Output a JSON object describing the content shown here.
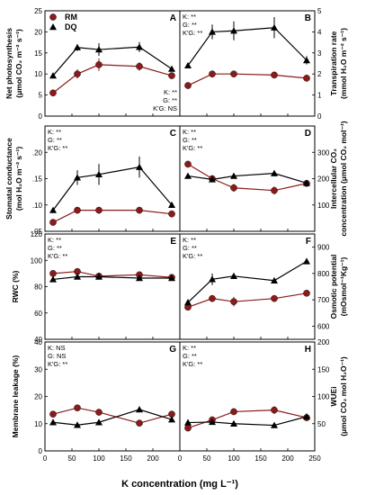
{
  "figure": {
    "xlabel": "K concentration (mg L⁻¹)",
    "legend": [
      {
        "name": "RM",
        "marker": "circle",
        "color": "#8b1a1a"
      },
      {
        "name": "DQ",
        "marker": "triangle",
        "color": "#000000"
      }
    ]
  },
  "chart_data": [
    {
      "type": "line",
      "panel": "A",
      "ylabel_lines": [
        "Net photosynthesis",
        "(μmol CO₂ m⁻² s⁻¹)"
      ],
      "ylabel_side": "left",
      "x": [
        15,
        60,
        100,
        175,
        235
      ],
      "xlim": [
        0,
        250
      ],
      "ylim": [
        0,
        25
      ],
      "yticks": [
        0,
        5,
        10,
        15,
        20,
        25
      ],
      "show_yticks": true,
      "stats": [
        "K: **",
        "G: **",
        "K'G: NS"
      ],
      "stats_position": "bottom-right",
      "series": [
        {
          "name": "RM",
          "values": [
            5.5,
            10.0,
            12.2,
            11.8,
            9.6
          ],
          "err": [
            0.4,
            1.1,
            1.5,
            1.0,
            0.4
          ]
        },
        {
          "name": "DQ",
          "values": [
            9.6,
            16.3,
            15.8,
            16.4,
            11.2
          ],
          "err": [
            0.5,
            0.8,
            1.5,
            1.2,
            0.5
          ]
        }
      ]
    },
    {
      "type": "line",
      "panel": "B",
      "ylabel_lines": [
        "Transpiration rate",
        "(mmol H₂O m⁻² s⁻¹)"
      ],
      "ylabel_side": "right",
      "x": [
        15,
        60,
        100,
        175,
        235
      ],
      "xlim": [
        0,
        250
      ],
      "ylim": [
        0,
        5
      ],
      "yticks": [
        0,
        1,
        2,
        3,
        4,
        5
      ],
      "show_yticks": true,
      "stats": [
        "K: **",
        "G: **",
        "K'G: **"
      ],
      "stats_position": "top-left",
      "series": [
        {
          "name": "RM",
          "values": [
            1.45,
            2.0,
            2.0,
            1.95,
            1.8
          ],
          "err": [
            0.1,
            0.15,
            0.15,
            0.1,
            0.1
          ]
        },
        {
          "name": "DQ",
          "values": [
            2.4,
            4.0,
            4.05,
            4.2,
            2.65
          ],
          "err": [
            0.1,
            0.35,
            0.45,
            0.5,
            0.2
          ]
        }
      ]
    },
    {
      "type": "line",
      "panel": "C",
      "ylabel_lines": [
        "Stomatal conductance",
        "(mol H₂O m⁻² s⁻¹)"
      ],
      "ylabel_side": "left",
      "x": [
        15,
        60,
        100,
        175,
        235
      ],
      "xlim": [
        0,
        250
      ],
      "ylim": [
        0.05,
        0.25
      ],
      "yticks": [
        0.05,
        0.1,
        0.15,
        0.2
      ],
      "ytick_labels": [
        ".05",
        ".10",
        ".15",
        ".20"
      ],
      "show_yticks": true,
      "stats": [
        "K: **",
        "G: **",
        "K'G: **"
      ],
      "stats_position": "top-left",
      "series": [
        {
          "name": "RM",
          "values": [
            0.067,
            0.09,
            0.09,
            0.09,
            0.083
          ],
          "err": [
            0.004,
            0.005,
            0.005,
            0.004,
            0.004
          ]
        },
        {
          "name": "DQ",
          "values": [
            0.09,
            0.152,
            0.158,
            0.172,
            0.1
          ],
          "err": [
            0.005,
            0.014,
            0.02,
            0.02,
            0.005
          ]
        }
      ]
    },
    {
      "type": "line",
      "panel": "D",
      "ylabel_lines": [
        "Intercellular CO₂",
        "concentration (μmol CO₂ mol⁻¹)"
      ],
      "ylabel_side": "right",
      "x": [
        15,
        60,
        100,
        175,
        235
      ],
      "xlim": [
        0,
        250
      ],
      "ylim": [
        0,
        400
      ],
      "yticks": [
        100,
        200,
        300
      ],
      "show_yticks": true,
      "stats": [
        "K: **",
        "G: **",
        "K'G: **"
      ],
      "stats_position": "top-left",
      "series": [
        {
          "name": "RM",
          "values": [
            255,
            200,
            165,
            155,
            182
          ],
          "err": [
            8,
            8,
            15,
            15,
            12
          ]
        },
        {
          "name": "DQ",
          "values": [
            210,
            197,
            210,
            220,
            183
          ],
          "err": [
            6,
            5,
            8,
            6,
            6
          ]
        }
      ]
    },
    {
      "type": "line",
      "panel": "E",
      "ylabel_lines": [
        "RWC (%)"
      ],
      "ylabel_side": "left",
      "x": [
        15,
        60,
        100,
        175,
        235
      ],
      "xlim": [
        0,
        250
      ],
      "ylim": [
        40,
        120
      ],
      "yticks": [
        40,
        60,
        80,
        100,
        120
      ],
      "show_yticks": true,
      "stats": [
        "K: **",
        "G: **",
        "K'G: **"
      ],
      "stats_position": "top-left",
      "series": [
        {
          "name": "RM",
          "values": [
            90,
            91.5,
            88,
            89,
            87
          ],
          "err": [
            1,
            1,
            1,
            1,
            1
          ]
        },
        {
          "name": "DQ",
          "values": [
            85.5,
            87.5,
            87.5,
            86.5,
            86.5
          ],
          "err": [
            1,
            1,
            1,
            1,
            1
          ]
        }
      ]
    },
    {
      "type": "line",
      "panel": "F",
      "ylabel_lines": [
        "Osmotic potential",
        "(mOsmol⁻¹Kg⁻¹)"
      ],
      "ylabel_side": "right",
      "x": [
        15,
        60,
        100,
        175,
        235
      ],
      "xlim": [
        0,
        250
      ],
      "ylim": [
        550,
        950
      ],
      "yticks": [
        600,
        700,
        800,
        900
      ],
      "show_yticks": true,
      "stats": [
        "K: **",
        "G: **",
        "K'G: **"
      ],
      "stats_position": "top-left",
      "series": [
        {
          "name": "RM",
          "values": [
            672,
            705,
            693,
            705,
            725
          ],
          "err": [
            8,
            12,
            18,
            10,
            8
          ]
        },
        {
          "name": "DQ",
          "values": [
            690,
            778,
            790,
            773,
            846
          ],
          "err": [
            8,
            22,
            10,
            8,
            10
          ]
        }
      ]
    },
    {
      "type": "line",
      "panel": "G",
      "ylabel_lines": [
        "Membrane leakage (%)"
      ],
      "ylabel_side": "left",
      "x": [
        15,
        60,
        100,
        175,
        235
      ],
      "xlim": [
        0,
        250
      ],
      "ylim": [
        0,
        40
      ],
      "yticks": [
        0,
        10,
        20,
        30,
        40
      ],
      "show_yticks": true,
      "stats": [
        "K: NS",
        "G: NS",
        "K'G: **"
      ],
      "stats_position": "top-left",
      "series": [
        {
          "name": "RM",
          "values": [
            13.5,
            15.8,
            14.2,
            10.2,
            13.5
          ],
          "err": [
            0.8,
            0.8,
            0.8,
            0.6,
            0.8
          ]
        },
        {
          "name": "DQ",
          "values": [
            10.5,
            9.5,
            10.5,
            15.2,
            11.5
          ],
          "err": [
            0.8,
            0.8,
            0.8,
            0.8,
            0.8
          ]
        }
      ]
    },
    {
      "type": "line",
      "panel": "H",
      "ylabel_lines": [
        "WUEi",
        "(μmol CO₂ mol H₂O⁻¹)"
      ],
      "ylabel_side": "right",
      "x": [
        15,
        60,
        100,
        175,
        235
      ],
      "xlim": [
        0,
        250
      ],
      "xticks": [
        0,
        50,
        100,
        150,
        200,
        250
      ],
      "ylim": [
        0,
        200
      ],
      "yticks": [
        50,
        100,
        150,
        200
      ],
      "show_yticks": true,
      "stats": [
        "K: **",
        "G: **",
        "K'G: **"
      ],
      "stats_position": "top-left",
      "series": [
        {
          "name": "RM",
          "values": [
            42,
            57,
            72,
            75,
            61
          ],
          "err": [
            3,
            4,
            6,
            7,
            4
          ]
        },
        {
          "name": "DQ",
          "values": [
            52,
            53,
            50,
            47,
            63
          ],
          "err": [
            3,
            3,
            3,
            3,
            3
          ]
        }
      ]
    }
  ]
}
